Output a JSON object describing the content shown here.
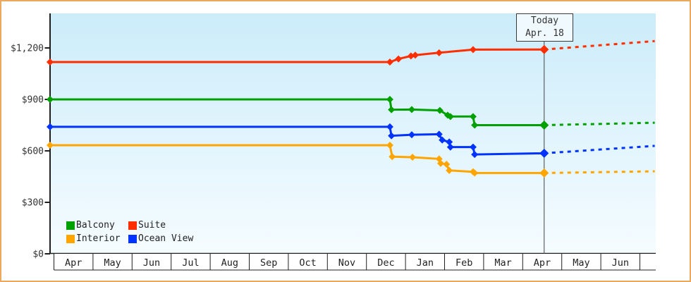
{
  "chart_data": {
    "type": "line",
    "y_unit": "$",
    "y_axis": {
      "tick_labels": [
        "$0",
        "$300",
        "$600",
        "$900",
        "$1,200"
      ],
      "tick_values": [
        0,
        300,
        600,
        900,
        1200
      ],
      "ylim": [
        0,
        1400
      ]
    },
    "x_axis": {
      "tick_labels": [
        "Apr",
        "May",
        "Jun",
        "Jul",
        "Aug",
        "Sep",
        "Oct",
        "Nov",
        "Dec",
        "Jan",
        "Feb",
        "Mar",
        "Apr",
        "May",
        "Jun"
      ]
    },
    "today": {
      "line1": "Today",
      "line2": "Apr. 18",
      "month_position": 12.55
    },
    "legend": {
      "position": "bottom-left-inside"
    },
    "grid": false,
    "projection_style": "dotted",
    "series": [
      {
        "name": "Balcony",
        "color": "#00a000",
        "points": [
          [
            -0.1,
            900
          ],
          [
            8.6,
            900
          ],
          [
            8.64,
            840
          ],
          [
            9.16,
            841
          ],
          [
            9.88,
            836
          ],
          [
            10.08,
            808
          ],
          [
            10.15,
            800
          ],
          [
            10.73,
            800
          ],
          [
            10.77,
            750
          ],
          [
            12.55,
            750
          ]
        ],
        "projection": [
          [
            12.55,
            750
          ],
          [
            15.38,
            764
          ]
        ]
      },
      {
        "name": "Suite",
        "color": "#ff2e00",
        "points": [
          [
            -0.1,
            1118
          ],
          [
            8.6,
            1118
          ],
          [
            8.82,
            1136
          ],
          [
            9.14,
            1153
          ],
          [
            9.25,
            1158
          ],
          [
            9.86,
            1172
          ],
          [
            10.73,
            1190
          ],
          [
            12.55,
            1191
          ]
        ],
        "projection": [
          [
            12.55,
            1191
          ],
          [
            15.38,
            1240
          ]
        ]
      },
      {
        "name": "Interior",
        "color": "#ffa500",
        "points": [
          [
            -0.1,
            633
          ],
          [
            8.6,
            633
          ],
          [
            8.66,
            566
          ],
          [
            9.18,
            563
          ],
          [
            9.86,
            553
          ],
          [
            9.9,
            527
          ],
          [
            10.05,
            522
          ],
          [
            10.12,
            486
          ],
          [
            10.73,
            478
          ],
          [
            10.77,
            471
          ],
          [
            12.55,
            471
          ]
        ],
        "projection": [
          [
            12.55,
            471
          ],
          [
            15.38,
            481
          ]
        ]
      },
      {
        "name": "Ocean View",
        "color": "#0033ff",
        "points": [
          [
            -0.1,
            740
          ],
          [
            8.6,
            740
          ],
          [
            8.64,
            688
          ],
          [
            9.16,
            694
          ],
          [
            9.86,
            697
          ],
          [
            9.94,
            663
          ],
          [
            10.12,
            652
          ],
          [
            10.15,
            622
          ],
          [
            10.73,
            622
          ],
          [
            10.77,
            579
          ],
          [
            12.55,
            586
          ]
        ],
        "projection": [
          [
            12.55,
            586
          ],
          [
            15.38,
            629
          ]
        ]
      }
    ]
  },
  "colors": {
    "frame_border": "#eba85f",
    "plot_bg_top": "#cbecfa",
    "plot_bg_bottom": "#f5fcff",
    "axis": "#1f1f1f",
    "tick_text": "#333333",
    "month_text": "#222222",
    "month_band_bg": "#ffffff",
    "today_line": "#444444",
    "today_box_bg": "#f0f9fe",
    "today_box_border": "#3a3a3a"
  }
}
